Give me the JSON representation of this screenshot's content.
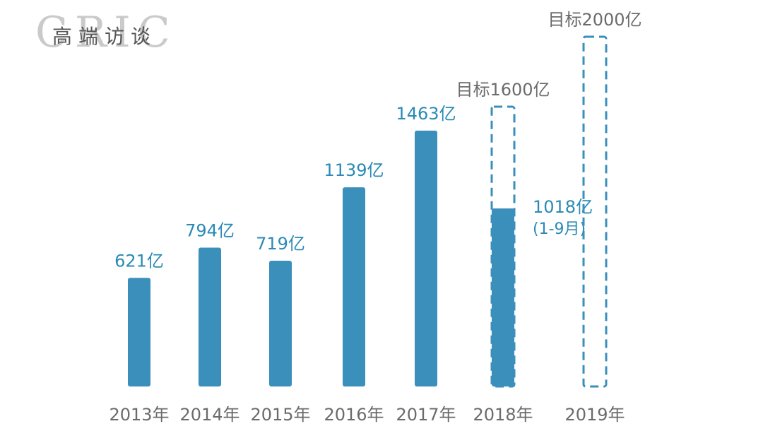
{
  "logo": {
    "letters": "CRIC",
    "text": "高端访谈"
  },
  "colors": {
    "bar": "#3a8fbb",
    "value_label": "#2a8ab5",
    "target_outline": "#3a8fbb",
    "gray_text": "#6b6b6b"
  },
  "chart_data": {
    "type": "bar",
    "categories": [
      "2013年",
      "2014年",
      "2015年",
      "2016年",
      "2017年",
      "2018年",
      "2019年"
    ],
    "values": [
      621,
      794,
      719,
      1139,
      1463,
      1018,
      null
    ],
    "value_labels": [
      "621亿",
      "794亿",
      "719亿",
      "1139亿",
      "1463亿",
      "1018亿",
      ""
    ],
    "value_sublabels": [
      "",
      "",
      "",
      "",
      "",
      "(1-9月)",
      ""
    ],
    "targets": [
      null,
      null,
      null,
      null,
      null,
      1600,
      2000
    ],
    "target_labels": [
      "",
      "",
      "",
      "",
      "",
      "目标1600亿",
      "目标2000亿"
    ],
    "unit": "亿",
    "title": "",
    "xlabel": "",
    "ylabel": "",
    "ylim": [
      0,
      2000
    ],
    "grid": false,
    "legend": "none"
  }
}
